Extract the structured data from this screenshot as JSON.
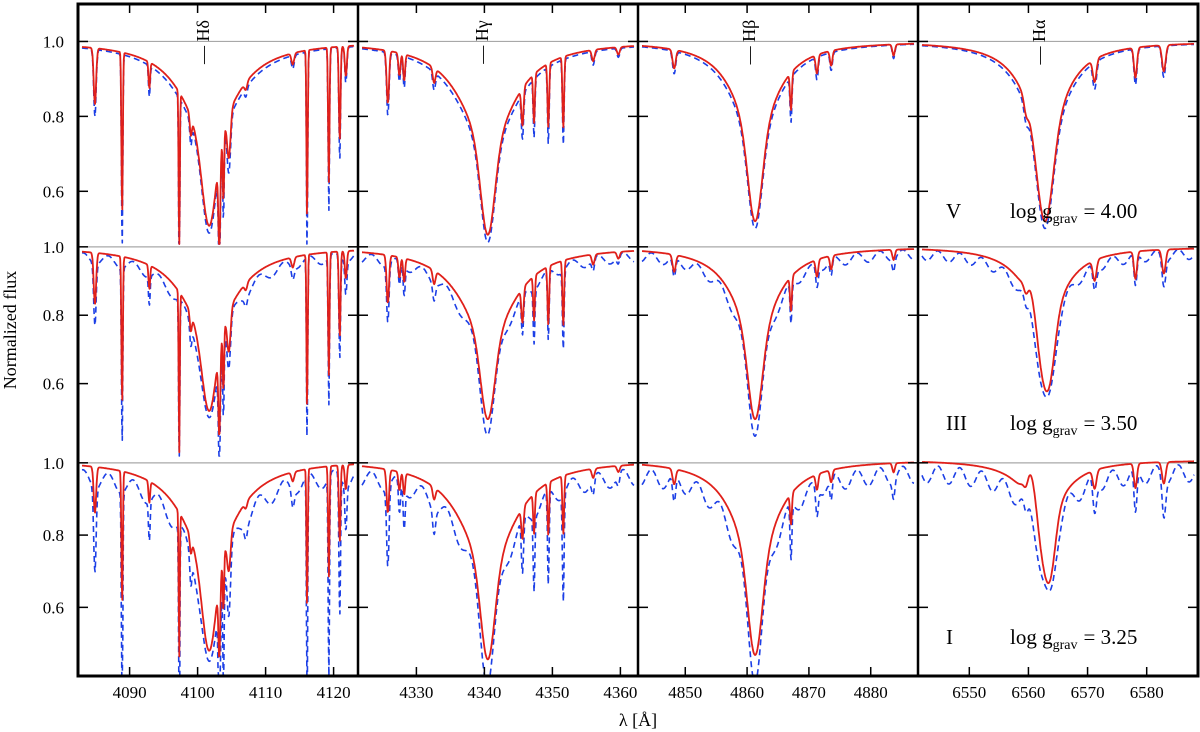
{
  "chart_data": {
    "type": "line",
    "title": "",
    "xlabel": "λ [Å]",
    "ylabel": "Normalized flux",
    "colors": {
      "model": "#e0201a",
      "reference": "#1c3fe6",
      "continuum": "#a8a8a8",
      "frame": "#000000"
    },
    "panels": [
      {
        "id": "hdelta",
        "line": "Hδ",
        "line_name": "H",
        "line_greek": "δ",
        "xlim": [
          4083,
          4123
        ],
        "line_center": 4101.7,
        "xticks": [
          4090,
          4100,
          4110,
          4120
        ],
        "xtick_labels": [
          "4090",
          "4100",
          "4110",
          "4120"
        ]
      },
      {
        "id": "hgamma",
        "line": "Hγ",
        "line_name": "H",
        "line_greek": "γ",
        "xlim": [
          4322,
          4362
        ],
        "line_center": 4340.5,
        "xticks": [
          4330,
          4340,
          4350,
          4360
        ],
        "xtick_labels": [
          "4330",
          "4340",
          "4350",
          "4360"
        ]
      },
      {
        "id": "hbeta",
        "line": "Hβ",
        "line_name": "H",
        "line_greek": "β",
        "xlim": [
          4843,
          4887
        ],
        "line_center": 4861.3,
        "xticks": [
          4850,
          4860,
          4870,
          4880
        ],
        "xtick_labels": [
          "4850",
          "4860",
          "4870",
          "4880"
        ]
      },
      {
        "id": "halpha",
        "line": "Hα",
        "line_name": "H",
        "line_greek": "α",
        "xlim": [
          6542,
          6588
        ],
        "line_center": 6562.8,
        "xticks": [
          6550,
          6560,
          6570,
          6580
        ],
        "xtick_labels": [
          "6550",
          "6560",
          "6570",
          "6580"
        ]
      }
    ],
    "rows": [
      {
        "class": "V",
        "label": "log g",
        "subscript": "grav",
        "value_text": "= 4.00",
        "log_g": 4.0,
        "ylim": [
          0.47,
          1.1
        ],
        "yticks": [
          0.6,
          0.8,
          1.0
        ],
        "ytick_labels": [
          "0.6",
          "0.8",
          "1.0"
        ]
      },
      {
        "class": "III",
        "label": "log g",
        "subscript": "grav",
        "value_text": "= 3.50",
        "log_g": 3.5,
        "ylim": [
          0.4,
          1.02
        ],
        "yticks": [
          0.6,
          0.8,
          1.0
        ],
        "ytick_labels": [
          "0.6",
          "0.8",
          "1.0"
        ]
      },
      {
        "class": "I",
        "label": "log g",
        "subscript": "grav",
        "value_text": "= 3.25",
        "log_g": 3.25,
        "ylim": [
          0.41,
          1.03
        ],
        "yticks": [
          0.6,
          0.8,
          1.0
        ],
        "ytick_labels": [
          "0.6",
          "0.8",
          "1.0"
        ]
      }
    ],
    "spectral_lines": {
      "hdelta": [
        [
          4084.9,
          0.15,
          0.18
        ],
        [
          4088.9,
          0.43,
          0.1
        ],
        [
          4092.9,
          0.07,
          0.12
        ],
        [
          4097.3,
          0.47,
          0.08
        ],
        [
          4099.0,
          0.05,
          0.15
        ],
        [
          4103.2,
          0.25,
          0.14
        ],
        [
          4103.8,
          0.18,
          0.1
        ],
        [
          4104.6,
          0.12,
          0.25
        ],
        [
          4107.1,
          0.02,
          0.2
        ],
        [
          4114.0,
          0.03,
          0.2
        ],
        [
          4116.1,
          0.45,
          0.09
        ],
        [
          4119.3,
          0.36,
          0.1
        ],
        [
          4120.9,
          0.25,
          0.12
        ],
        [
          4121.8,
          0.08,
          0.15
        ]
      ],
      "hgamma": [
        [
          4325.8,
          0.14,
          0.18
        ],
        [
          4327.5,
          0.06,
          0.15
        ],
        [
          4328.2,
          0.07,
          0.14
        ],
        [
          4332.6,
          0.04,
          0.2
        ],
        [
          4345.6,
          0.1,
          0.16
        ],
        [
          4347.3,
          0.13,
          0.12
        ],
        [
          4349.4,
          0.17,
          0.12
        ],
        [
          4351.6,
          0.19,
          0.12
        ],
        [
          4356.0,
          0.03,
          0.2
        ],
        [
          4359.7,
          0.02,
          0.2
        ]
      ],
      "hbeta": [
        [
          4848.2,
          0.05,
          0.25
        ],
        [
          4867.1,
          0.1,
          0.15
        ],
        [
          4871.3,
          0.05,
          0.2
        ],
        [
          4873.6,
          0.04,
          0.2
        ],
        [
          4883.7,
          0.03,
          0.2
        ]
      ],
      "halpha": [
        [
          6559.6,
          0.03,
          0.35
        ],
        [
          6571.2,
          0.06,
          0.3
        ],
        [
          6578.1,
          0.08,
          0.25
        ],
        [
          6582.9,
          0.07,
          0.3
        ]
      ]
    },
    "balmer_profiles": {
      "hdelta": {
        "depth": [
          0.41,
          0.4,
          0.44
        ],
        "core_sigma": 1.0,
        "wing_gamma": 4.5
      },
      "hgamma": {
        "depth": [
          0.43,
          0.42,
          0.46
        ],
        "core_sigma": 1.0,
        "wing_gamma": 4.6
      },
      "hbeta": {
        "depth": [
          0.4,
          0.42,
          0.45
        ],
        "core_sigma": 1.1,
        "wing_gamma": 4.0
      },
      "halpha": {
        "depth": [
          0.4,
          0.33,
          0.24
        ],
        "core_sigma": 1.3,
        "wing_gamma": 4.0
      }
    }
  }
}
